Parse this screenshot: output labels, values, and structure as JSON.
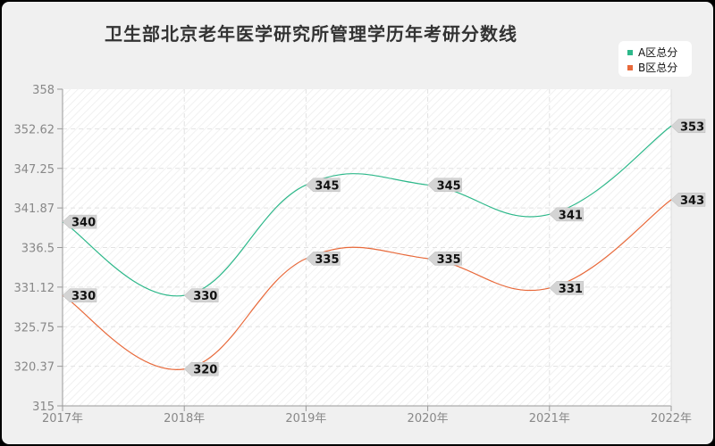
{
  "chart_data": {
    "type": "line",
    "title": "卫生部北京老年医学研究所管理学历年考研分数线",
    "xlabel": "",
    "ylabel": "",
    "categories": [
      "2017年",
      "2018年",
      "2019年",
      "2020年",
      "2021年",
      "2022年"
    ],
    "series": [
      {
        "name": "A区总分",
        "color": "#2db88a",
        "values": [
          340,
          330,
          345,
          345,
          341,
          353
        ]
      },
      {
        "name": "B区总分",
        "color": "#e8693a",
        "values": [
          330,
          320,
          335,
          335,
          331,
          343
        ]
      }
    ],
    "ylim": [
      315,
      358
    ],
    "yticks": [
      "358",
      "352.62",
      "347.25",
      "341.87",
      "336.5",
      "331.12",
      "325.75",
      "320.37",
      "315"
    ],
    "grid": true,
    "legend_position": "top-right",
    "smooth": true
  },
  "legend": {
    "a_label": "A区总分",
    "b_label": "B区总分"
  }
}
